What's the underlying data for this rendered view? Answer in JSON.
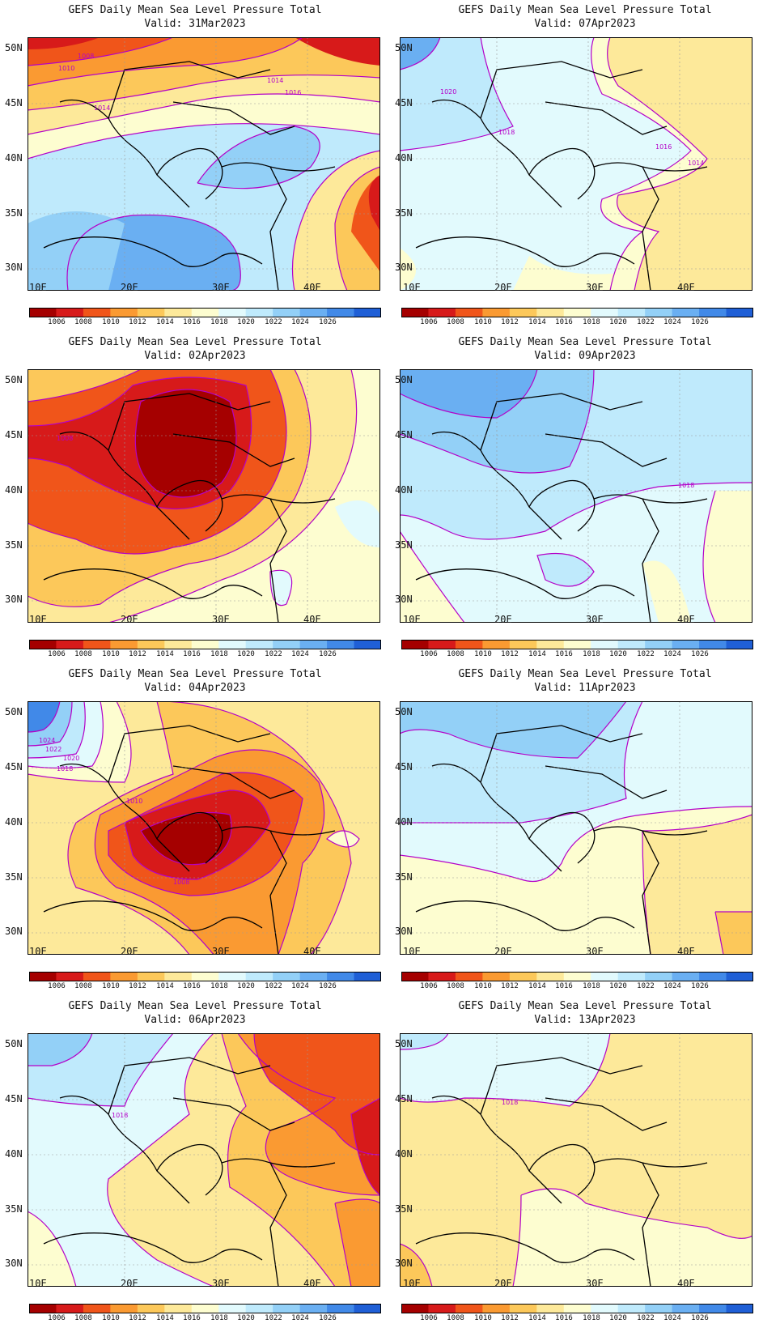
{
  "panel_title": "GEFS Daily Mean Sea Level Pressure Total",
  "valid_prefix": "Valid:",
  "axes": {
    "x_ticks": [
      "10E",
      "20E",
      "30E",
      "40E"
    ],
    "y_ticks": [
      "50N",
      "45N",
      "40N",
      "35N",
      "30N"
    ]
  },
  "colorbar": {
    "labels": [
      "1006",
      "1008",
      "1010",
      "1012",
      "1014",
      "1016",
      "1018",
      "1020",
      "1022",
      "1024",
      "1026"
    ],
    "colors": [
      "#a50000",
      "#d71a1a",
      "#f0551a",
      "#fa9a32",
      "#fcc85a",
      "#fde99a",
      "#fdfdd0",
      "#e2fafd",
      "#bfeafc",
      "#93d0f7",
      "#6aaff2",
      "#4189e8",
      "#1f5fd6"
    ]
  },
  "contour_color": "#b400c8",
  "panels": [
    {
      "date": "31Mar2023",
      "contour_labels": [
        "1008",
        "1010",
        "1014",
        "1014",
        "1016"
      ]
    },
    {
      "date": "07Apr2023",
      "contour_labels": [
        "1020",
        "1018",
        "1016",
        "1014"
      ]
    },
    {
      "date": "02Apr2023",
      "contour_labels": [
        "1008"
      ]
    },
    {
      "date": "09Apr2023",
      "contour_labels": [
        "1018"
      ]
    },
    {
      "date": "04Apr2023",
      "contour_labels": [
        "1024",
        "1022",
        "1020",
        "1018",
        "1010",
        "1008"
      ]
    },
    {
      "date": "11Apr2023",
      "contour_labels": []
    },
    {
      "date": "06Apr2023",
      "contour_labels": [
        "1018"
      ]
    },
    {
      "date": "13Apr2023",
      "contour_labels": [
        "1018"
      ]
    }
  ]
}
